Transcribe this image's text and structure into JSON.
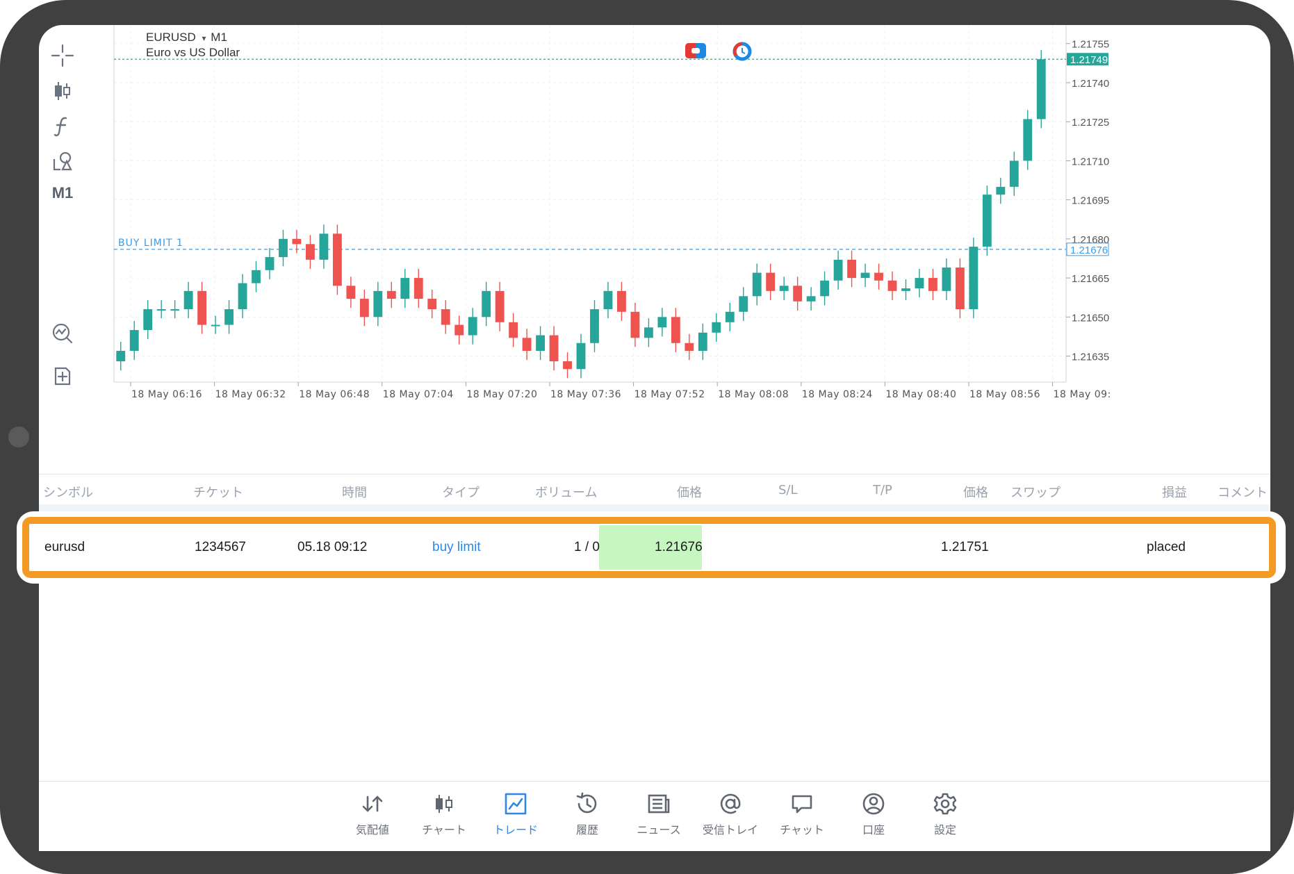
{
  "chart": {
    "symbol": "EURUSD",
    "timeframe": "M1",
    "dropdown_arrow": "▾",
    "description": "Euro vs US Dollar",
    "order_line_label": "BUY LIMIT 1",
    "current_price": "1.21749",
    "order_price": "1.21676",
    "y_ticks": [
      "1.21755",
      "1.21740",
      "1.21725",
      "1.21710",
      "1.21695",
      "1.21680",
      "1.21665",
      "1.21650",
      "1.21635"
    ],
    "x_ticks": [
      "18 May 06:16",
      "18 May 06:32",
      "18 May 06:48",
      "18 May 07:04",
      "18 May 07:20",
      "18 May 07:36",
      "18 May 07:52",
      "18 May 08:08",
      "18 May 08:24",
      "18 May 08:40",
      "18 May 08:56",
      "18 May 09:"
    ],
    "colors": {
      "bull": "#26a69a",
      "bear": "#ef5350",
      "price_line": "#26a69a",
      "order_line": "#3d9be9",
      "grid": "#eef0f2"
    }
  },
  "toolbar": {
    "timeframe_label": "M1",
    "icons": [
      "crosshair-icon",
      "chart-type-icon",
      "indicators-icon",
      "objects-icon",
      "trade-signal-icon",
      "new-order-icon"
    ]
  },
  "table": {
    "headers": {
      "symbol": "シンボル",
      "ticket": "チケット",
      "time": "時間",
      "type": "タイプ",
      "volume": "ボリューム",
      "price": "価格",
      "sl": "S/L",
      "tp": "T/P",
      "price2": "価格",
      "swap": "スワップ",
      "profit": "損益",
      "comment": "コメント"
    },
    "row": {
      "symbol": "eurusd",
      "ticket": "1234567",
      "time": "05.18 09:12",
      "type": "buy limit",
      "volume": "1 / 0",
      "price": "1.21676",
      "current": "1.21751",
      "state": "placed"
    },
    "colors": {
      "highlight": "#f39a24",
      "type_link": "#2f86e6",
      "price_bg": "#c6f7c0"
    }
  },
  "nav": {
    "items": [
      {
        "label": "気配値",
        "icon": "quotes-icon"
      },
      {
        "label": "チャート",
        "icon": "chart-icon"
      },
      {
        "label": "トレード",
        "icon": "trade-icon",
        "active": true
      },
      {
        "label": "履歴",
        "icon": "history-icon"
      },
      {
        "label": "ニュース",
        "icon": "news-icon"
      },
      {
        "label": "受信トレイ",
        "icon": "mailbox-icon"
      },
      {
        "label": "チャット",
        "icon": "chat-icon"
      },
      {
        "label": "口座",
        "icon": "account-icon"
      },
      {
        "label": "設定",
        "icon": "settings-icon"
      }
    ],
    "active_color": "#2f86e6"
  },
  "chart_data": {
    "type": "candlestick",
    "title": "EURUSD M1",
    "subtitle": "Euro vs US Dollar",
    "ylim": [
      1.21625,
      1.2176
    ],
    "x_ticks": [
      "18 May 06:16",
      "18 May 06:32",
      "18 May 06:48",
      "18 May 07:04",
      "18 May 07:20",
      "18 May 07:36",
      "18 May 07:52",
      "18 May 08:08",
      "18 May 08:24",
      "18 May 08:40",
      "18 May 08:56",
      "18 May 09:"
    ],
    "close_approx": [
      1.21637,
      1.21645,
      1.21653,
      1.21653,
      1.21653,
      1.2166,
      1.21647,
      1.21647,
      1.21653,
      1.21663,
      1.21668,
      1.21673,
      1.2168,
      1.21678,
      1.21672,
      1.21682,
      1.21662,
      1.21657,
      1.2165,
      1.2166,
      1.21657,
      1.21665,
      1.21657,
      1.21653,
      1.21647,
      1.21643,
      1.2165,
      1.2166,
      1.21648,
      1.21642,
      1.21637,
      1.21643,
      1.21633,
      1.2163,
      1.2164,
      1.21653,
      1.2166,
      1.21652,
      1.21642,
      1.21646,
      1.2165,
      1.2164,
      1.21637,
      1.21644,
      1.21648,
      1.21652,
      1.21658,
      1.21667,
      1.2166,
      1.21662,
      1.21656,
      1.21658,
      1.21664,
      1.21672,
      1.21665,
      1.21667,
      1.21664,
      1.2166,
      1.21661,
      1.21665,
      1.2166,
      1.21669,
      1.21653,
      1.21677,
      1.21697,
      1.217,
      1.2171,
      1.21726,
      1.21749
    ],
    "current_price": 1.21749,
    "order_price": 1.21676
  }
}
